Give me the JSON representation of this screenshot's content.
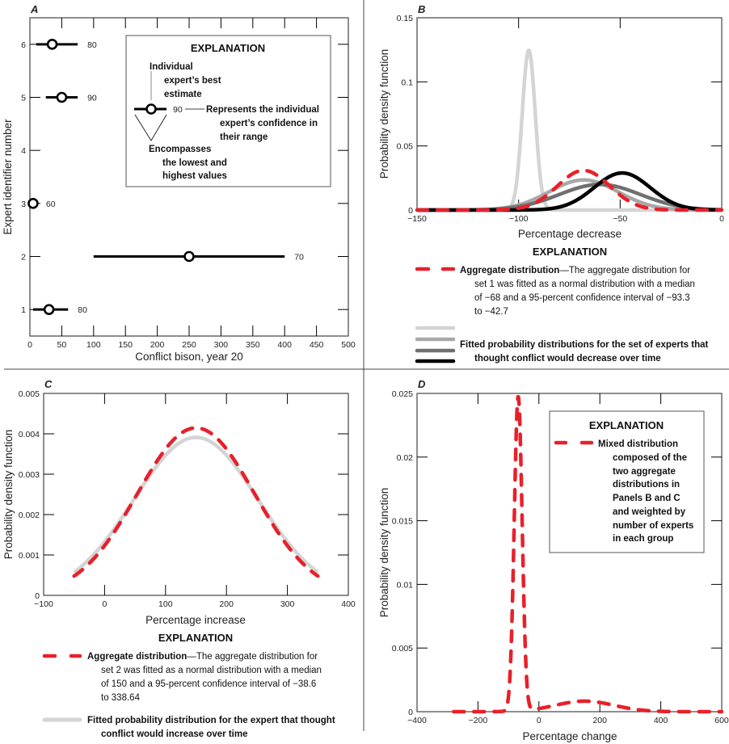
{
  "panels": {
    "A": {
      "label": "A",
      "legend": {
        "title": "EXPLANATION",
        "best_estimate": [
          "Individual",
          "expert’s best",
          "estimate"
        ],
        "sample_confidence": "90",
        "confidence_text": [
          "Represents the individual",
          "expert’s confidence in",
          "their range"
        ],
        "range_text": [
          "Encompasses",
          "the lowest and",
          "highest values"
        ]
      }
    },
    "B": {
      "label": "B",
      "explanation_title": "EXPLANATION",
      "aggregate_bold": "Aggregate distribution",
      "aggregate_text": [
        "—The aggregate distribution for",
        "set 1 was fitted as a normal distribution with a median",
        "of −68 and a 95-percent confidence interval of −93.3",
        "to −42.7"
      ],
      "fitted_text": [
        "Fitted probability distributions for the set of experts that",
        "thought conflict would decrease over time"
      ]
    },
    "C": {
      "label": "C",
      "explanation_title": "EXPLANATION",
      "aggregate_bold": "Aggregate distribution",
      "aggregate_text": [
        "—The aggregate distribution for",
        "set 2 was fitted as a normal distribution with a median",
        "of 150 and a 95-percent confidence interval of −38.6",
        "to 338.64"
      ],
      "fitted_text": [
        "Fitted probability distribution for the expert that thought",
        "conflict would increase over time"
      ]
    },
    "D": {
      "label": "D",
      "legend_title": "EXPLANATION",
      "legend_text": [
        "Mixed distribution",
        "composed of the",
        "two aggregate",
        "distributions in",
        "Panels B and C",
        "and weighted by",
        "number of experts",
        "in each group"
      ]
    }
  },
  "chart_data": [
    {
      "panel": "A",
      "type": "scatter",
      "xlabel": "Conflict bison, year 20",
      "ylabel": "Expert identifier number",
      "xlim": [
        0,
        500
      ],
      "ylim": [
        0.5,
        6.5
      ],
      "xticks": [
        0,
        50,
        100,
        150,
        200,
        250,
        300,
        350,
        400,
        450,
        500
      ],
      "yticks": [
        1,
        2,
        3,
        4,
        5,
        6
      ],
      "points": [
        {
          "expert": 6,
          "best": 35,
          "low": 10,
          "high": 75,
          "confidence": "80"
        },
        {
          "expert": 5,
          "best": 50,
          "low": 25,
          "high": 75,
          "confidence": "90"
        },
        {
          "expert": 3,
          "best": 5,
          "low": 0,
          "high": 10,
          "confidence": "60"
        },
        {
          "expert": 2,
          "best": 250,
          "low": 100,
          "high": 400,
          "confidence": "70"
        },
        {
          "expert": 1,
          "best": 30,
          "low": 5,
          "high": 60,
          "confidence": "80"
        }
      ]
    },
    {
      "panel": "B",
      "type": "line",
      "xlabel": "Percentage decrease",
      "ylabel": "Probability density function",
      "xlim": [
        -150,
        0
      ],
      "ylim": [
        0,
        0.15
      ],
      "xticks": [
        -150,
        -100,
        -50,
        0
      ],
      "xtick_labels": [
        "−150",
        "−100",
        "−50",
        "0"
      ],
      "yticks": [
        0,
        0.05,
        0.1,
        0.15
      ],
      "ytick_labels": [
        "0",
        "0.05",
        "0.1",
        "0.15"
      ],
      "series": [
        {
          "distribution": "normal",
          "mean": -95,
          "sd": 3.2,
          "color": "#d4d4d4",
          "style": "solid"
        },
        {
          "distribution": "normal",
          "mean": -68,
          "sd": 17,
          "color": "#a8a8a8",
          "style": "solid"
        },
        {
          "distribution": "normal",
          "mean": -60,
          "sd": 20,
          "color": "#707070",
          "style": "solid"
        },
        {
          "distribution": "normal",
          "mean": -49,
          "sd": 13.8,
          "color": "#000000",
          "style": "solid"
        },
        {
          "name": "Aggregate distribution",
          "distribution": "normal",
          "median": -68,
          "ci95": [
            -93.3,
            -42.7
          ],
          "color": "#e8202a",
          "style": "dashed"
        }
      ]
    },
    {
      "panel": "C",
      "type": "line",
      "xlabel": "Percentage increase",
      "ylabel": "Probability density function",
      "xlim": [
        -100,
        400
      ],
      "ylim": [
        0,
        0.005
      ],
      "xticks": [
        -100,
        0,
        100,
        200,
        300,
        400
      ],
      "xtick_labels": [
        "−100",
        "0",
        "100",
        "200",
        "300",
        "400"
      ],
      "yticks": [
        0,
        0.001,
        0.002,
        0.003,
        0.004,
        0.005
      ],
      "ytick_labels": [
        "0",
        "0.001",
        "0.002",
        "0.003",
        "0.004",
        "0.005"
      ],
      "domain": [
        -50,
        350
      ],
      "series": [
        {
          "distribution": "normal",
          "mean": 150,
          "sd": 102,
          "color": "#d4d4d4",
          "style": "solid"
        },
        {
          "name": "Aggregate distribution",
          "distribution": "normal",
          "median": 150,
          "ci95": [
            -38.6,
            338.64
          ],
          "color": "#e8202a",
          "style": "dashed"
        }
      ]
    },
    {
      "panel": "D",
      "type": "line",
      "xlabel": "Percentage change",
      "ylabel": "Probability density function",
      "xlim": [
        -400,
        600
      ],
      "ylim": [
        0,
        0.025
      ],
      "xticks": [
        -400,
        -200,
        0,
        200,
        400,
        600
      ],
      "xtick_labels": [
        "−400",
        "−200",
        "0",
        "200",
        "400",
        "600"
      ],
      "yticks": [
        0,
        0.005,
        0.01,
        0.015,
        0.02,
        0.025
      ],
      "ytick_labels": [
        "0",
        "0.005",
        "0.01",
        "0.015",
        "0.02",
        "0.025"
      ],
      "domain": [
        -280,
        600
      ],
      "series": [
        {
          "name": "Mixed distribution",
          "distribution": "mixture",
          "components": [
            {
              "weight": 0.8,
              "median": -68,
              "ci95": [
                -93.3,
                -42.7
              ]
            },
            {
              "weight": 0.2,
              "median": 150,
              "ci95": [
                -38.6,
                338.64
              ]
            }
          ],
          "color": "#e8202a",
          "style": "dashed"
        }
      ]
    }
  ]
}
